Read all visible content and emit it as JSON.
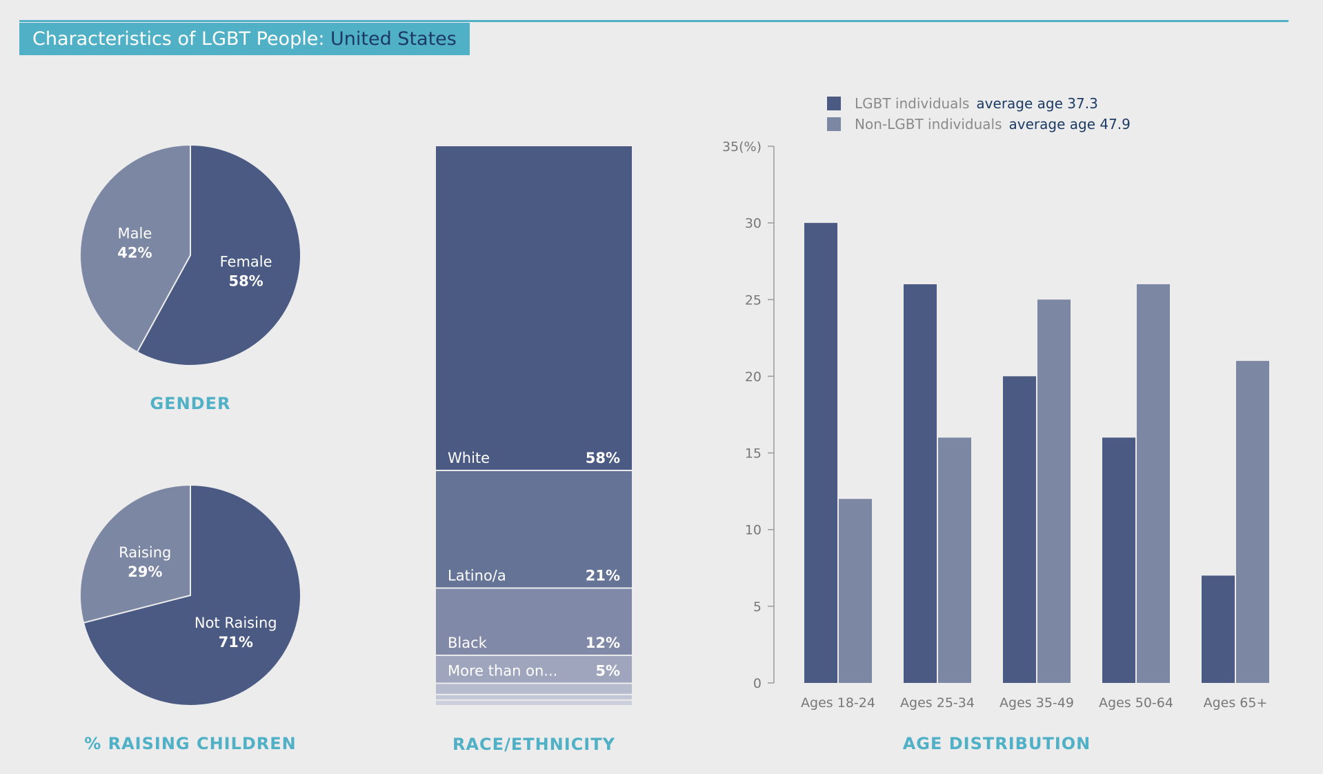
{
  "header": {
    "title_prefix": "Characteristics of LGBT People:",
    "title_location": "United States"
  },
  "colors": {
    "accent": "#4fb0c6",
    "dark_navy": "#1d3a64",
    "series_dark": "#4a5a83",
    "series_light": "#7c87a4",
    "background": "#ececec"
  },
  "chart_data": [
    {
      "type": "pie",
      "title": "GENDER",
      "slices": [
        {
          "label": "Female",
          "value": 58,
          "display": "58%",
          "color": "#4a5a83"
        },
        {
          "label": "Male",
          "value": 42,
          "display": "42%",
          "color": "#7c87a4"
        }
      ]
    },
    {
      "type": "pie",
      "title": "% RAISING CHILDREN",
      "slices": [
        {
          "label": "Not Raising",
          "value": 71,
          "display": "71%",
          "color": "#4a5a83"
        },
        {
          "label": "Raising",
          "value": 29,
          "display": "29%",
          "color": "#7c87a4"
        }
      ]
    },
    {
      "type": "bar",
      "stacked": true,
      "title": "RACE/ETHNICITY",
      "segments": [
        {
          "label": "White",
          "value": 58,
          "display": "58%",
          "color": "#4a5a83"
        },
        {
          "label": "Latino/a",
          "value": 21,
          "display": "21%",
          "color": "#647396"
        },
        {
          "label": "Black",
          "value": 12,
          "display": "12%",
          "color": "#8089a8"
        },
        {
          "label": "More than on...",
          "value": 5,
          "display": "5%",
          "color": "#9ea5bd"
        },
        {
          "label": "",
          "value": 2,
          "display": "",
          "color": "#b6bccd"
        },
        {
          "label": "",
          "value": 1,
          "display": "",
          "color": "#c2c7d5"
        },
        {
          "label": "",
          "value": 1,
          "display": "",
          "color": "#ccd0dc"
        }
      ]
    },
    {
      "type": "bar",
      "title": "AGE DISTRIBUTION",
      "categories": [
        "Ages 18-24",
        "Ages 25-34",
        "Ages 35-49",
        "Ages 50-64",
        "Ages 65+"
      ],
      "series": [
        {
          "name": "LGBT individuals",
          "note": "average age 37.3",
          "values": [
            30,
            26,
            20,
            16,
            7
          ],
          "color": "#4a5a83"
        },
        {
          "name": "Non-LGBT individuals",
          "note": "average age 47.9",
          "values": [
            12,
            16,
            25,
            26,
            21
          ],
          "color": "#7c87a4"
        }
      ],
      "ylim": [
        0,
        35
      ],
      "yticks": [
        0,
        5,
        10,
        15,
        20,
        25,
        30,
        35
      ],
      "ytick_labels": [
        "0",
        "5",
        "10",
        "15",
        "20",
        "25",
        "30",
        "35(%)"
      ],
      "xlabel": "",
      "ylabel": "",
      "grid": false,
      "legend": "top"
    }
  ]
}
